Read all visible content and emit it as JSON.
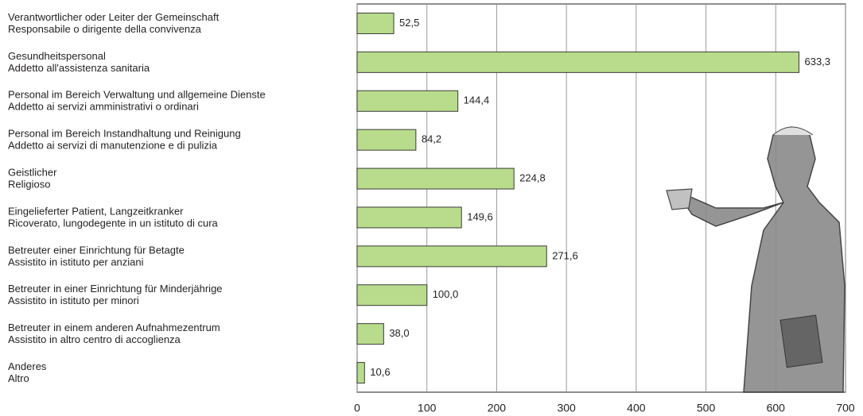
{
  "chart_data": {
    "type": "bar",
    "orientation": "horizontal",
    "categories": [
      [
        "Verantwortlicher oder Leiter der Gemeinschaft",
        "Responsabile o dirigente della convivenza"
      ],
      [
        "Gesundheitspersonal",
        "Addetto all'assistenza sanitaria"
      ],
      [
        "Personal im Bereich Verwaltung und allgemeine Dienste",
        "Addetto ai servizi amministrativi o ordinari"
      ],
      [
        "Personal im Bereich Instandhaltung und Reinigung",
        "Addetto ai servizi di manutenzione e di pulizia"
      ],
      [
        "Geistlicher",
        "Religioso"
      ],
      [
        "Eingelieferter Patient, Langzeitkranker",
        "Ricoverato, lungodegente in un istituto di cura"
      ],
      [
        "Betreuter einer Einrichtung für Betagte",
        "Assistito in istituto per anziani"
      ],
      [
        "Betreuter in einer Einrichtung für Minderjährige",
        "Assistito in istituto per minori"
      ],
      [
        "Betreuter in einem anderen Aufnahmezentrum",
        "Assistito in altro centro di accoglienza"
      ],
      [
        "Anderes",
        "Altro"
      ]
    ],
    "values": [
      52.5,
      633.3,
      144.4,
      84.2,
      224.8,
      149.6,
      271.6,
      100.0,
      38.0,
      10.6
    ],
    "value_labels": [
      "52,5",
      "633,3",
      "144,4",
      "84,2",
      "224,8",
      "149,6",
      "271,6",
      "100,0",
      "38,0",
      "10,6"
    ],
    "color": "#b9dc8c",
    "xlim": [
      0,
      700
    ],
    "xticks": [
      0,
      100,
      200,
      300,
      400,
      500,
      600,
      700
    ],
    "grid": true
  }
}
